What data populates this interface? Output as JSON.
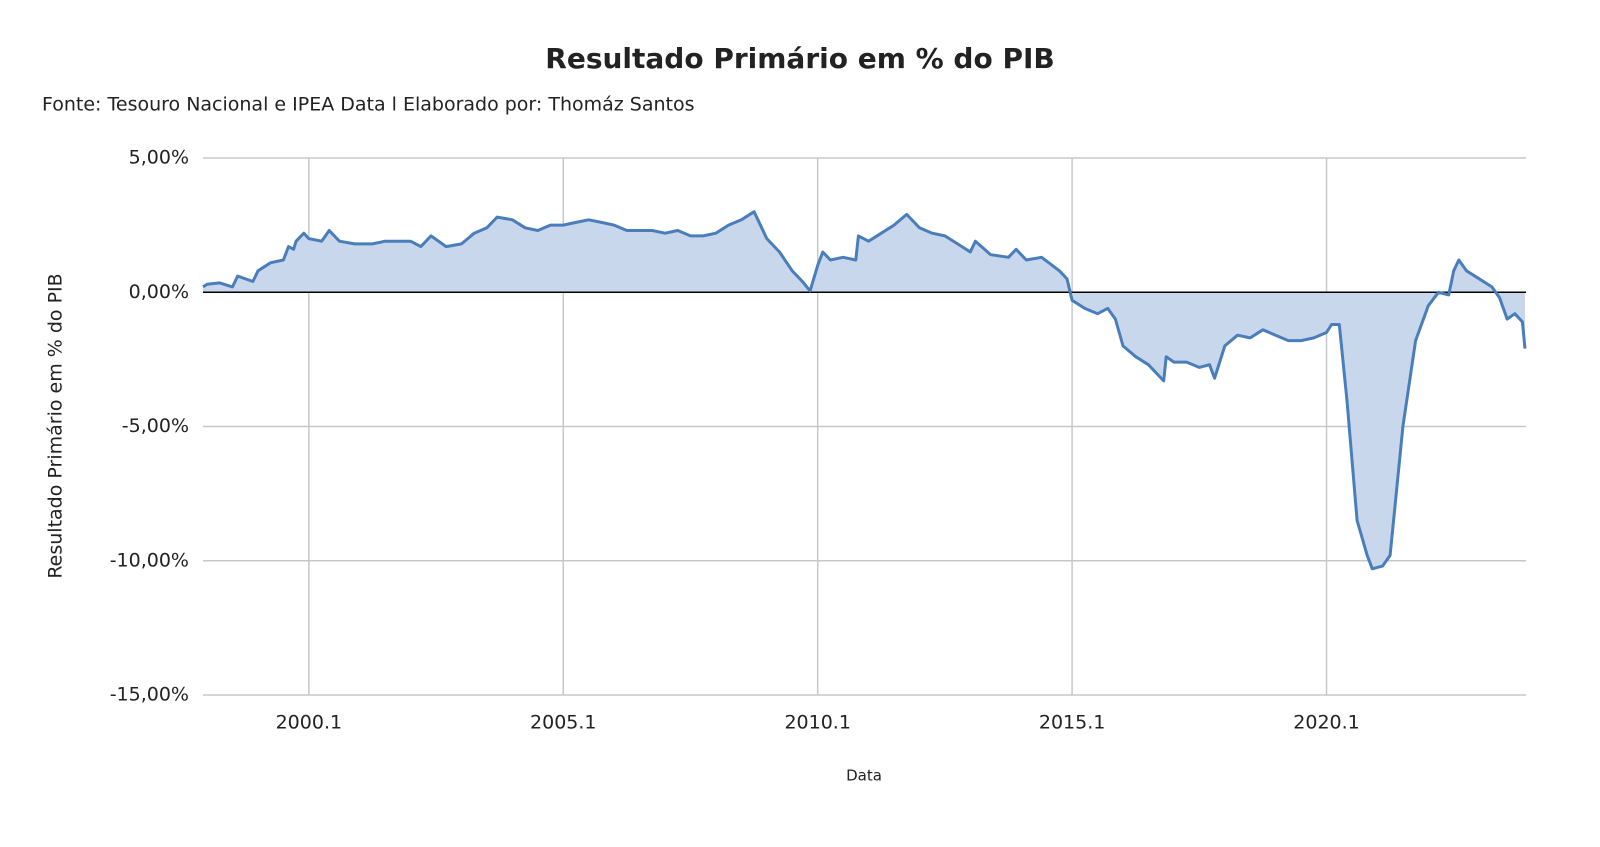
{
  "chart_data": {
    "type": "area",
    "title": "Resultado Primário em % do PIB",
    "subtitle": "Fonte: Tesouro Nacional e IPEA Data l Elaborado por: Thomáz Santos",
    "xlabel": "Data",
    "ylabel": "Resultado Primário em % do PIB",
    "x": [
      1997.92,
      1998.0,
      1998.25,
      1998.5,
      1998.6,
      1998.9,
      1999.0,
      1999.25,
      1999.5,
      1999.6,
      1999.7,
      1999.75,
      1999.9,
      2000.0,
      2000.25,
      2000.4,
      2000.6,
      2000.9,
      2001.25,
      2001.5,
      2001.75,
      2002.0,
      2002.2,
      2002.4,
      2002.7,
      2003.0,
      2003.25,
      2003.5,
      2003.7,
      2004.0,
      2004.25,
      2004.5,
      2004.75,
      2005.0,
      2005.25,
      2005.5,
      2005.75,
      2006.0,
      2006.25,
      2006.5,
      2006.75,
      2007.0,
      2007.25,
      2007.5,
      2007.75,
      2008.0,
      2008.25,
      2008.5,
      2008.75,
      2009.0,
      2009.25,
      2009.5,
      2009.7,
      2009.85,
      2010.0,
      2010.1,
      2010.25,
      2010.5,
      2010.75,
      2010.8,
      2011.0,
      2011.25,
      2011.5,
      2011.75,
      2012.0,
      2012.25,
      2012.5,
      2012.75,
      2013.0,
      2013.1,
      2013.4,
      2013.75,
      2013.9,
      2014.1,
      2014.4,
      2014.75,
      2014.9,
      2015.0,
      2015.25,
      2015.5,
      2015.7,
      2015.85,
      2016.0,
      2016.25,
      2016.5,
      2016.8,
      2016.85,
      2017.0,
      2017.25,
      2017.5,
      2017.7,
      2017.8,
      2018.0,
      2018.25,
      2018.5,
      2018.75,
      2019.0,
      2019.25,
      2019.5,
      2019.75,
      2020.0,
      2020.1,
      2020.25,
      2020.4,
      2020.6,
      2020.8,
      2020.9,
      2021.1,
      2021.25,
      2021.5,
      2021.75,
      2022.0,
      2022.2,
      2022.4,
      2022.5,
      2022.6,
      2022.75,
      2023.0,
      2023.25,
      2023.4,
      2023.55,
      2023.7,
      2023.85,
      2023.9
    ],
    "series": [
      {
        "name": "Resultado Primário",
        "color": "#4a7ebb",
        "fill": "#c9d7ec",
        "values": [
          0.2,
          0.3,
          0.35,
          0.2,
          0.6,
          0.4,
          0.8,
          1.1,
          1.2,
          1.7,
          1.6,
          1.9,
          2.2,
          2.0,
          1.9,
          2.3,
          1.9,
          1.8,
          1.8,
          1.9,
          1.9,
          1.9,
          1.7,
          2.1,
          1.7,
          1.8,
          2.2,
          2.4,
          2.8,
          2.7,
          2.4,
          2.3,
          2.5,
          2.5,
          2.6,
          2.7,
          2.6,
          2.5,
          2.3,
          2.3,
          2.3,
          2.2,
          2.3,
          2.1,
          2.1,
          2.2,
          2.5,
          2.7,
          3.0,
          2.0,
          1.5,
          0.8,
          0.4,
          0.05,
          1.0,
          1.5,
          1.2,
          1.3,
          1.2,
          2.1,
          1.9,
          2.2,
          2.5,
          2.9,
          2.4,
          2.2,
          2.1,
          1.8,
          1.5,
          1.9,
          1.4,
          1.3,
          1.6,
          1.2,
          1.3,
          0.8,
          0.5,
          -0.3,
          -0.6,
          -0.8,
          -0.6,
          -1.0,
          -2.0,
          -2.4,
          -2.7,
          -3.3,
          -2.4,
          -2.6,
          -2.6,
          -2.8,
          -2.7,
          -3.2,
          -2.0,
          -1.6,
          -1.7,
          -1.4,
          -1.6,
          -1.8,
          -1.8,
          -1.7,
          -1.5,
          -1.2,
          -1.2,
          -4.0,
          -8.5,
          -9.8,
          -10.3,
          -10.2,
          -9.8,
          -5.0,
          -1.8,
          -0.5,
          0,
          -0.1,
          0.8,
          1.2,
          0.8,
          0.5,
          0.2,
          -0.2,
          -1.0,
          -0.8,
          -1.1,
          -2.1
        ]
      }
    ],
    "xlim": [
      1997.92,
      2023.92
    ],
    "xticks": [
      {
        "value": 2000.0,
        "label": "2000.1"
      },
      {
        "value": 2005.0,
        "label": "2005.1"
      },
      {
        "value": 2010.0,
        "label": "2010.1"
      },
      {
        "value": 2015.0,
        "label": "2015.1"
      },
      {
        "value": 2020.0,
        "label": "2020.1"
      }
    ],
    "ylim": [
      -15,
      5
    ],
    "yticks": [
      {
        "value": 5,
        "label": "5,00%"
      },
      {
        "value": 0,
        "label": "0,00%"
      },
      {
        "value": -5,
        "label": "-5,00%"
      },
      {
        "value": -10,
        "label": "-10,00%"
      },
      {
        "value": -15,
        "label": "-15,00%"
      }
    ],
    "grid": true
  }
}
